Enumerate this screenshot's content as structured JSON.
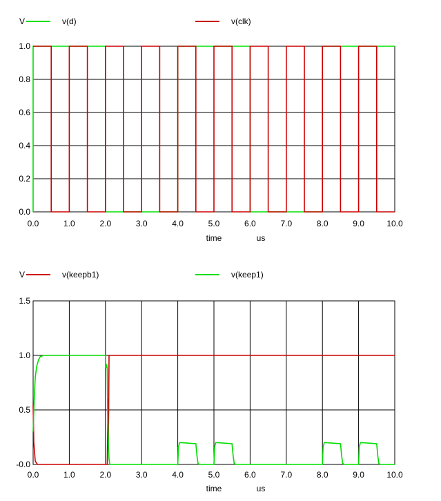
{
  "chart_data": [
    {
      "type": "line",
      "ylabel": "V",
      "xlabel": "time",
      "xunit": "us",
      "xlim": [
        0,
        10
      ],
      "ylim": [
        0,
        1
      ],
      "xticks": [
        "0.0",
        "1.0",
        "2.0",
        "3.0",
        "4.0",
        "5.0",
        "6.0",
        "7.0",
        "8.0",
        "9.0",
        "10.0"
      ],
      "yticks": [
        "0.0",
        "0.2",
        "0.4",
        "0.6",
        "0.8",
        "1.0"
      ],
      "grid": true,
      "legend": "top",
      "series": [
        {
          "name": "v(d)",
          "color": "#00dd00",
          "x": [
            0,
            0,
            2,
            2,
            2.5,
            2.5,
            4,
            4,
            6,
            6,
            6.5,
            6.5,
            8,
            8,
            10
          ],
          "y": [
            0,
            1,
            1,
            0,
            0,
            0,
            0,
            1,
            1,
            0,
            0,
            0,
            0,
            1,
            1
          ]
        },
        {
          "name": "v(clk)",
          "color": "#cc0000",
          "x": [
            0,
            0.5,
            0.5,
            1,
            1,
            1.5,
            1.5,
            2,
            2,
            2.5,
            2.5,
            3,
            3,
            3.5,
            3.5,
            4,
            4,
            4.5,
            4.5,
            5,
            5,
            5.5,
            5.5,
            6,
            6,
            6.5,
            6.5,
            7,
            7,
            7.5,
            7.5,
            8,
            8,
            8.5,
            8.5,
            9,
            9,
            9.5,
            9.5,
            10
          ],
          "y": [
            1,
            1,
            0,
            0,
            1,
            1,
            0,
            0,
            1,
            1,
            0,
            0,
            1,
            1,
            0,
            0,
            1,
            1,
            0,
            0,
            1,
            1,
            0,
            0,
            1,
            1,
            0,
            0,
            1,
            1,
            0,
            0,
            1,
            1,
            0,
            0,
            1,
            1,
            0,
            0
          ]
        }
      ]
    },
    {
      "type": "line",
      "ylabel": "V",
      "xlabel": "time",
      "xunit": "us",
      "xlim": [
        0,
        10
      ],
      "ylim": [
        0,
        1.5
      ],
      "xticks": [
        "0.0",
        "1.0",
        "2.0",
        "3.0",
        "4.0",
        "5.0",
        "6.0",
        "7.0",
        "8.0",
        "9.0",
        "10.0"
      ],
      "yticks": [
        "-0.0",
        "0.5",
        "1.0",
        "1.5"
      ],
      "grid": true,
      "legend": "top",
      "series": [
        {
          "name": "v(keepb1)",
          "color": "#cc0000",
          "x": [
            0,
            0.02,
            0.06,
            0.12,
            2,
            2.05,
            2.07,
            2.08,
            2.09,
            2.1,
            10
          ],
          "y": [
            0.55,
            0.2,
            0.03,
            0,
            0,
            0,
            0.6,
            0.2,
            0.5,
            1,
            1
          ]
        },
        {
          "name": "v(keep1)",
          "color": "#00dd00",
          "x": [
            0,
            0.03,
            0.06,
            0.1,
            0.15,
            0.2,
            0.3,
            2,
            2.01,
            2.03,
            2.05,
            2.06,
            2.08,
            2.1,
            2.12,
            2.2,
            4,
            4.02,
            4.05,
            4.1,
            4.5,
            4.53,
            4.56,
            4.6,
            5,
            5.02,
            5.05,
            5.1,
            5.5,
            5.53,
            5.56,
            5.6,
            8,
            8.02,
            8.05,
            8.1,
            8.5,
            8.53,
            8.56,
            8.6,
            9,
            9.02,
            9.05,
            9.1,
            9.5,
            9.53,
            9.56,
            9.6,
            10
          ],
          "y": [
            0.3,
            0.6,
            0.8,
            0.9,
            0.96,
            0.99,
            1,
            1,
            0.88,
            0.92,
            0.88,
            0.5,
            0.2,
            0.05,
            0,
            0,
            0,
            0.16,
            0.2,
            0.2,
            0.19,
            0.08,
            0.01,
            0,
            0,
            0.16,
            0.2,
            0.2,
            0.19,
            0.08,
            0.01,
            0,
            0,
            0.16,
            0.2,
            0.2,
            0.19,
            0.08,
            0.01,
            0,
            0,
            0.16,
            0.2,
            0.2,
            0.19,
            0.08,
            0.01,
            0,
            0
          ]
        }
      ]
    }
  ]
}
